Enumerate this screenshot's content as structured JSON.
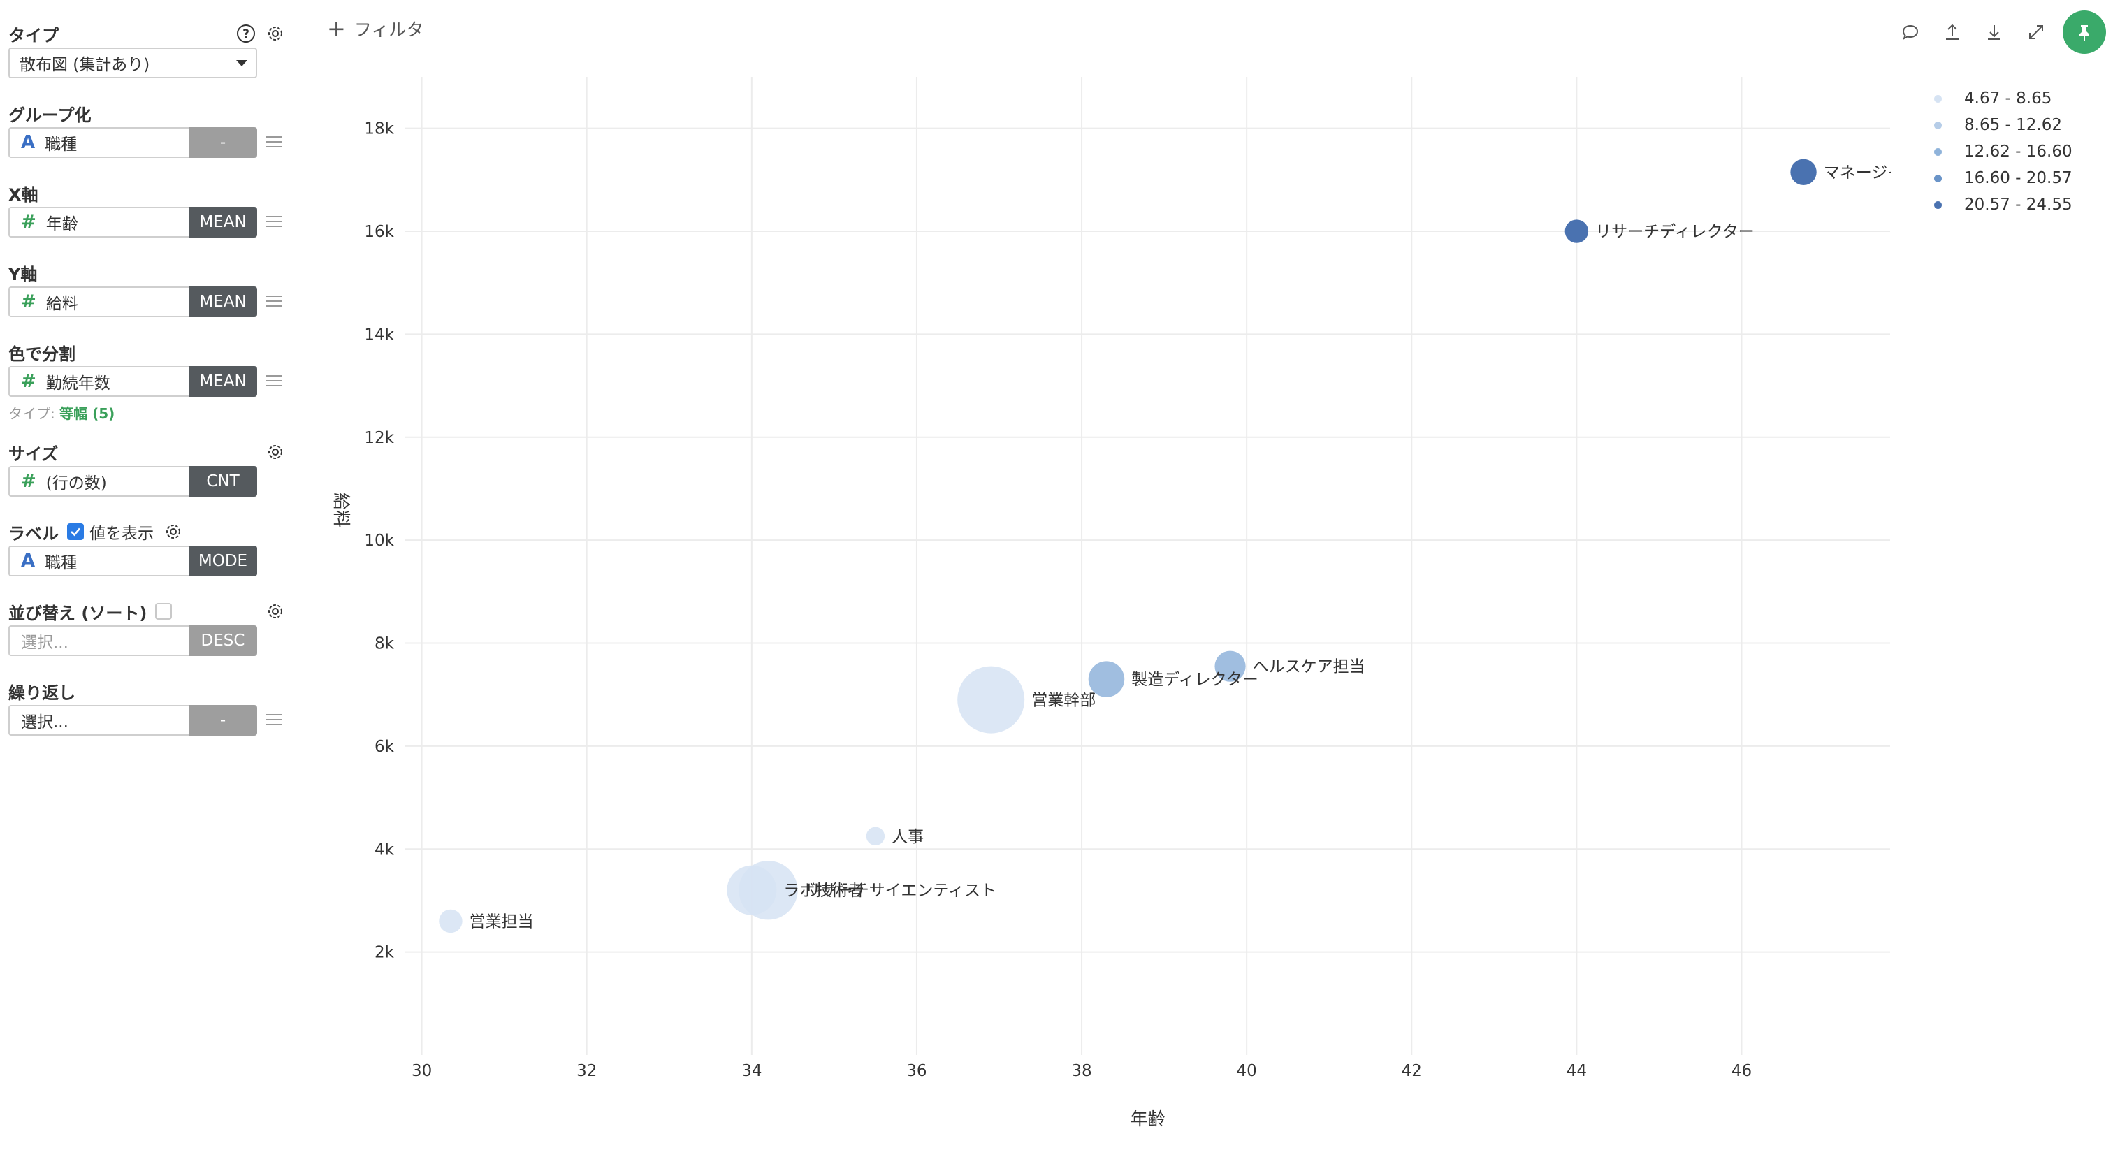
{
  "sidebar": {
    "type": {
      "label": "タイプ",
      "value": "散布図 (集計あり)"
    },
    "group": {
      "label": "グループ化",
      "field": "職種",
      "agg": "-"
    },
    "x_axis": {
      "label": "X軸",
      "field": "年齢",
      "agg": "MEAN"
    },
    "y_axis": {
      "label": "Y軸",
      "field": "給料",
      "agg": "MEAN"
    },
    "color": {
      "label": "色で分割",
      "field": "勤続年数",
      "agg": "MEAN",
      "note_prefix": "タイプ: ",
      "note_value": "等幅 (5)"
    },
    "size": {
      "label": "サイズ",
      "field": "(行の数)",
      "agg": "CNT"
    },
    "label_sec": {
      "label": "ラベル",
      "checkbox_label": "値を表示",
      "field": "職種",
      "agg": "MODE"
    },
    "sort": {
      "label": "並び替え (ソート)",
      "placeholder": "選択...",
      "agg": "DESC"
    },
    "repeat": {
      "label": "繰り返し",
      "placeholder": "選択...",
      "agg": "-"
    }
  },
  "filter": {
    "label": "フィルタ"
  },
  "chart_data": {
    "type": "scatter",
    "xlabel": "年齢",
    "ylabel": "給料",
    "xlim": [
      29.8,
      47.8
    ],
    "ylim": [
      0,
      19000
    ],
    "x_ticks": [
      30,
      32,
      34,
      36,
      38,
      40,
      42,
      44,
      46
    ],
    "y_ticks": [
      2000,
      4000,
      6000,
      8000,
      10000,
      12000,
      14000,
      16000,
      18000
    ],
    "y_tick_labels": [
      "2k",
      "4k",
      "6k",
      "8k",
      "10k",
      "12k",
      "14k",
      "16k",
      "18k"
    ],
    "grid": true,
    "legend_position": "top-right",
    "legend": [
      {
        "label": "4.67 - 8.65",
        "color": "#d6e3f3"
      },
      {
        "label": "8.65 - 12.62",
        "color": "#b6cde8"
      },
      {
        "label": "12.62 - 16.60",
        "color": "#8fb3da"
      },
      {
        "label": "16.60 - 20.57",
        "color": "#6a94c8"
      },
      {
        "label": "20.57 - 24.55",
        "color": "#4a72b0"
      }
    ],
    "points": [
      {
        "label": "マネージャー",
        "x": 46.75,
        "y": 17150,
        "count": 50,
        "tenure_bin": 4
      },
      {
        "label": "リサーチディレクター",
        "x": 44.0,
        "y": 16000,
        "count": 40,
        "tenure_bin": 4
      },
      {
        "label": "ヘルスケア担当",
        "x": 39.8,
        "y": 7550,
        "count": 70,
        "tenure_bin": 2
      },
      {
        "label": "製造ディレクター",
        "x": 38.3,
        "y": 7300,
        "count": 95,
        "tenure_bin": 2
      },
      {
        "label": "営業幹部",
        "x": 36.9,
        "y": 6900,
        "count": 330,
        "tenure_bin": 0
      },
      {
        "label": "人事",
        "x": 35.5,
        "y": 4250,
        "count": 25,
        "tenure_bin": 0
      },
      {
        "label": "ラボ技術者",
        "x": 34.0,
        "y": 3200,
        "count": 180,
        "tenure_bin": 0
      },
      {
        "label": "リサーチサイエンティスト",
        "x": 34.2,
        "y": 3200,
        "count": 255,
        "tenure_bin": 0
      },
      {
        "label": "営業担当",
        "x": 30.35,
        "y": 2600,
        "count": 40,
        "tenure_bin": 0
      }
    ]
  }
}
